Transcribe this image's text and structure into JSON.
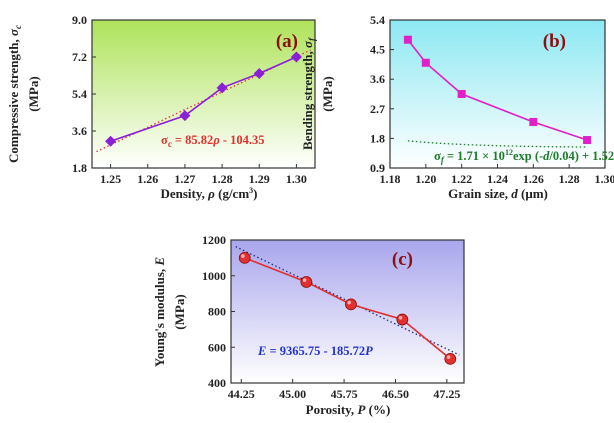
{
  "chart_data": [
    {
      "type": "line",
      "panel": "(a)",
      "xlabel_main": "Density, ",
      "xlabel_sym": "ρ",
      "xlabel_unit": " (g/cm",
      "xlabel_sup": "3",
      "xlabel_close": ")",
      "ylabel_main": "Compressive strength, ",
      "ylabel_sym": "σ",
      "ylabel_sub": "c",
      "ylabel_unit": "(MPa)",
      "xlim": [
        1.245,
        1.305
      ],
      "ylim": [
        1.8,
        9.0
      ],
      "xticks": [
        "1.25",
        "1.26",
        "1.27",
        "1.28",
        "1.29",
        "1.30"
      ],
      "yticks": [
        "1.8",
        "3.6",
        "5.4",
        "7.2",
        "9.0"
      ],
      "x": [
        1.25,
        1.27,
        1.28,
        1.29,
        1.3
      ],
      "y": [
        3.1,
        4.35,
        5.7,
        6.4,
        7.2
      ],
      "fit": {
        "intercept": -104.35,
        "slope": 85.82
      },
      "equation_lhs": "σ",
      "equation_sub": "c",
      "equation_rhs": " = 85.82",
      "equation_sym": "ρ",
      "equation_tail": " - 104.35",
      "color": "#8b1fd6",
      "fit_color": "#e03030",
      "eq_color": "#e03030",
      "panel_color": "#8b1010",
      "gradient": [
        "#aee35a",
        "#ffffff"
      ]
    },
    {
      "type": "line",
      "panel": "(b)",
      "xlabel_main": "Grain size, ",
      "xlabel_sym": "d",
      "xlabel_unit": " (μm)",
      "ylabel_main": "Bending strength, ",
      "ylabel_sym": "σ",
      "ylabel_sub": "f",
      "ylabel_unit": "(MPa)",
      "xlim": [
        1.18,
        1.3
      ],
      "ylim": [
        0.9,
        5.4
      ],
      "xticks": [
        "1.18",
        "1.20",
        "1.22",
        "1.24",
        "1.26",
        "1.28",
        "1.30"
      ],
      "yticks": [
        "0.9",
        "1.8",
        "2.7",
        "3.6",
        "4.5",
        "5.4"
      ],
      "x": [
        1.19,
        1.2,
        1.22,
        1.26,
        1.29
      ],
      "y": [
        4.8,
        4.1,
        3.15,
        2.3,
        1.75
      ],
      "fit": {
        "a": 1710000000000.0,
        "t": 0.04,
        "c": 1.52
      },
      "equation_lhs": "σ",
      "equation_sub": "f",
      "equation_rhs": " = 1.71 × 10",
      "equation_sup": "12",
      "equation_mid": "exp (-",
      "equation_sym": "d",
      "equation_tail": "/0.04) + 1.52",
      "color": "#e020c8",
      "fit_color": "#1f7a2a",
      "eq_color": "#1f7a2a",
      "panel_color": "#8b1010",
      "gradient": [
        "#8ce8f2",
        "#ffffff"
      ]
    },
    {
      "type": "line",
      "panel": "(c)",
      "xlabel_main": "Porosity, ",
      "xlabel_sym": "P",
      "xlabel_unit": " (%)",
      "ylabel_main": "Young's modulus, ",
      "ylabel_sym": "E",
      "ylabel_unit": "(MPa)",
      "xlim": [
        44.1,
        47.5
      ],
      "ylim": [
        400,
        1200
      ],
      "xticks": [
        "44.25",
        "45.00",
        "45.75",
        "46.50",
        "47.25"
      ],
      "yticks": [
        "400",
        "600",
        "800",
        "1000",
        "1200"
      ],
      "x": [
        44.3,
        45.2,
        45.85,
        46.6,
        47.3
      ],
      "y": [
        1100,
        965,
        840,
        755,
        535
      ],
      "fit": {
        "intercept": 9365.75,
        "slope": -185.72
      },
      "equation_lhs": "E",
      "equation_rhs": " = 9365.75 - 185.72",
      "equation_sym": "P",
      "color": "#e03030",
      "fit_color": "#1a2a8a",
      "eq_color": "#2233cc",
      "panel_color": "#8b1010",
      "gradient": [
        "#a9a6ec",
        "#ffffff"
      ]
    }
  ]
}
